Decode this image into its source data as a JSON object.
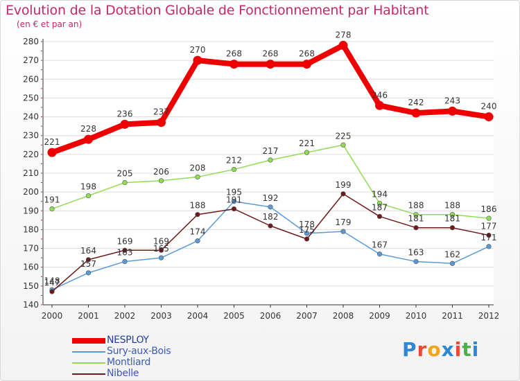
{
  "title": "Evolution de la Dotation Globale de Fonctionnement par Habitant",
  "subtitle": "(en € et par an)",
  "logo": {
    "letters": [
      "P",
      "r",
      "o",
      "x",
      "i",
      "t",
      "i"
    ],
    "colors": [
      "#2e86d4",
      "#e84a2e",
      "#f2a51a",
      "#2e86d4",
      "#e84a2e",
      "#4caf50",
      "#2e86d4"
    ]
  },
  "chart_data": {
    "type": "line",
    "x": [
      "2000",
      "2001",
      "2002",
      "2003",
      "2004",
      "2005",
      "2006",
      "2007",
      "2008",
      "2009",
      "2010",
      "2011",
      "2012"
    ],
    "ylim": [
      140,
      280
    ],
    "yticks": [
      "140",
      "150",
      "160",
      "170",
      "180",
      "190",
      "200",
      "210",
      "220",
      "230",
      "240",
      "250",
      "260",
      "270",
      "280"
    ],
    "grid": "horizontal",
    "legend_position": "bottom-left",
    "series": [
      {
        "name": "NESPLOY",
        "color": "#ee0000",
        "values": [
          221,
          228,
          236,
          237,
          270,
          268,
          268,
          268,
          278,
          246,
          242,
          243,
          240
        ],
        "labels": [
          "221",
          "228",
          "236",
          "237",
          "270",
          "268",
          "268",
          "268",
          "278",
          "246",
          "242",
          "243",
          "240"
        ]
      },
      {
        "name": "Sury-aux-Bois",
        "color": "#5b9bd5",
        "values": [
          148,
          157,
          163,
          165,
          174,
          195,
          192,
          178,
          179,
          167,
          163,
          162,
          171
        ],
        "labels": [
          "148",
          "157",
          "163",
          "165",
          "174",
          "195",
          "192",
          "178",
          "179",
          "167",
          "163",
          "162",
          "171"
        ]
      },
      {
        "name": "Montliard",
        "color": "#90dd55",
        "values": [
          191,
          198,
          205,
          206,
          208,
          212,
          217,
          221,
          225,
          194,
          188,
          188,
          186
        ],
        "labels": [
          "191",
          "198",
          "205",
          "206",
          "208",
          "212",
          "217",
          "221",
          "225",
          "194",
          "188",
          "188",
          "186"
        ]
      },
      {
        "name": "Nibelle",
        "color": "#6e1a1a",
        "values": [
          147,
          164,
          169,
          169,
          188,
          191,
          182,
          175,
          199,
          187,
          181,
          181,
          177
        ],
        "labels": [
          "147",
          "164",
          "169",
          "169",
          "188",
          "191",
          "182",
          "175",
          "199",
          "187",
          "181",
          "181",
          "177"
        ]
      }
    ]
  }
}
